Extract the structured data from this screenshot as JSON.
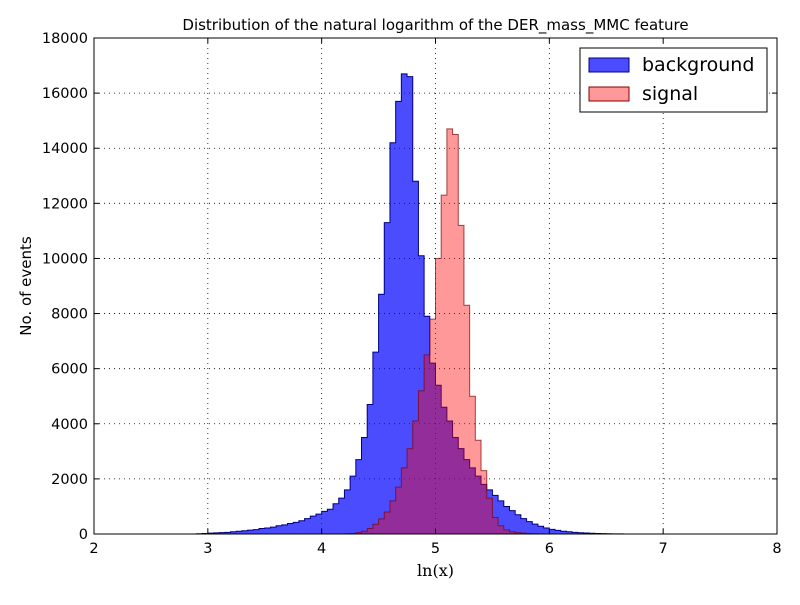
{
  "chart_data": {
    "type": "histogram",
    "title": "Distribution of the natural logarithm of the DER_mass_MMC feature",
    "xlabel": "ln(x)",
    "ylabel": "No. of events",
    "xlim": [
      2,
      8
    ],
    "ylim": [
      0,
      18000
    ],
    "x_ticks": [
      "2",
      "3",
      "4",
      "5",
      "6",
      "7",
      "8"
    ],
    "y_ticks": [
      "0",
      "2000",
      "4000",
      "6000",
      "8000",
      "10000",
      "12000",
      "14000",
      "16000",
      "18000"
    ],
    "grid": true,
    "legend_position": "top-right",
    "bin_start": 2.2,
    "bin_width": 0.05,
    "series": [
      {
        "name": "background",
        "color": "#0000ff",
        "edge_color": "#000080",
        "alpha": 0.7,
        "values": [
          0,
          0,
          0,
          0,
          0,
          0,
          0,
          0,
          0,
          0,
          0,
          0,
          0,
          0,
          10,
          20,
          30,
          40,
          50,
          60,
          80,
          100,
          120,
          140,
          160,
          200,
          220,
          250,
          300,
          330,
          380,
          420,
          480,
          560,
          650,
          720,
          820,
          900,
          1100,
          1300,
          1600,
          2100,
          2700,
          3500,
          4700,
          6600,
          8700,
          11300,
          14200,
          15700,
          16700,
          16600,
          12800,
          10100,
          7900,
          6200,
          5400,
          4600,
          4100,
          3500,
          3100,
          2700,
          2400,
          2100,
          1800,
          1600,
          1400,
          1200,
          1000,
          850,
          700,
          560,
          450,
          360,
          280,
          220,
          170,
          130,
          100,
          80,
          60,
          45,
          35,
          25,
          20,
          15,
          10,
          5,
          5,
          0,
          0,
          0,
          0,
          0,
          0,
          0,
          0,
          0,
          0,
          0,
          0,
          0,
          0,
          0,
          0,
          0,
          0,
          0,
          0,
          0,
          0,
          0,
          0,
          0,
          0,
          0
        ]
      },
      {
        "name": "signal",
        "color": "#ff0000",
        "edge_color": "#800000",
        "alpha": 0.4,
        "values": [
          0,
          0,
          0,
          0,
          0,
          0,
          0,
          0,
          0,
          0,
          0,
          0,
          0,
          0,
          0,
          0,
          0,
          0,
          0,
          0,
          0,
          0,
          0,
          0,
          0,
          0,
          0,
          0,
          0,
          0,
          0,
          0,
          0,
          0,
          0,
          0,
          0,
          0,
          0,
          0,
          10,
          20,
          50,
          100,
          200,
          350,
          550,
          800,
          1200,
          1700,
          2400,
          3100,
          4100,
          5200,
          6500,
          7800,
          10000,
          12300,
          14700,
          14500,
          11200,
          8300,
          5000,
          3400,
          2300,
          1300,
          600,
          300,
          150,
          80,
          50,
          30,
          20,
          10,
          5,
          0,
          0,
          0,
          0,
          0,
          0,
          0,
          0,
          0,
          0,
          0,
          0,
          0,
          0,
          0,
          0,
          0,
          0,
          0,
          0,
          0,
          0,
          0,
          0,
          0,
          0,
          0,
          0,
          0,
          0,
          0,
          0,
          0,
          0,
          0,
          0,
          0,
          0,
          0,
          0
        ]
      }
    ]
  }
}
